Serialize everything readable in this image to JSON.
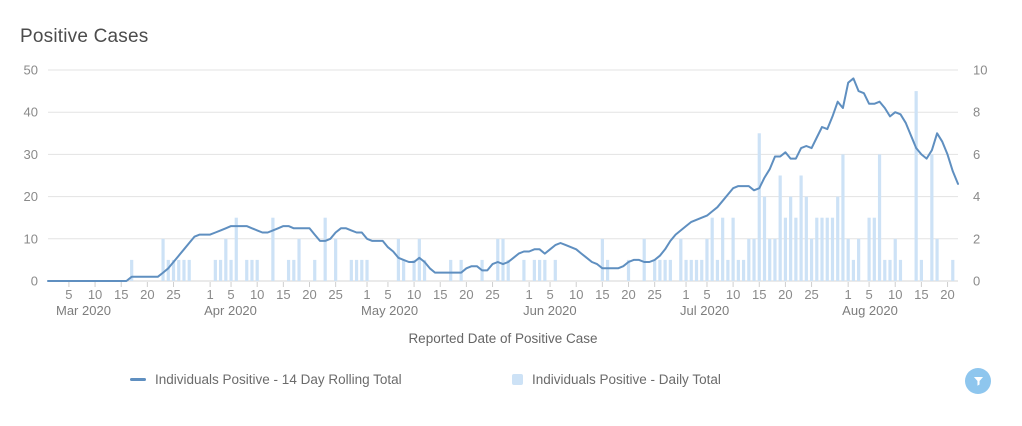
{
  "chart_data": {
    "type": "combo",
    "title": "Positive Cases",
    "xlabel": "Reported Date of Positive Case",
    "grid": true,
    "legend_position": "bottom",
    "left_axis": {
      "range": [
        0,
        50
      ],
      "ticks": [
        0,
        10,
        20,
        30,
        40,
        50
      ]
    },
    "right_axis": {
      "range": [
        0,
        10
      ],
      "ticks": [
        0,
        2,
        4,
        6,
        8,
        10
      ]
    },
    "months": [
      {
        "label": "Mar 2020",
        "days": 31,
        "tick_days": [
          5,
          10,
          15,
          20,
          25
        ]
      },
      {
        "label": "Apr 2020",
        "days": 30,
        "tick_days": [
          1,
          5,
          10,
          15,
          20,
          25
        ]
      },
      {
        "label": "May 2020",
        "days": 31,
        "tick_days": [
          1,
          5,
          10,
          15,
          20,
          25
        ]
      },
      {
        "label": "Jun 2020",
        "days": 30,
        "tick_days": [
          1,
          5,
          10,
          15,
          20,
          25
        ]
      },
      {
        "label": "Jul 2020",
        "days": 31,
        "tick_days": [
          1,
          5,
          10,
          15,
          20,
          25
        ]
      },
      {
        "label": "Aug 2020",
        "days": 22,
        "tick_days": [
          1,
          5,
          10,
          15,
          20
        ]
      }
    ],
    "series": [
      {
        "name": "Individuals Positive - 14 Day Rolling Total",
        "type": "line",
        "axis": "left",
        "color": "#5f8fc0",
        "values": [
          0,
          0,
          0,
          0,
          0,
          0,
          0,
          0,
          0,
          0,
          0,
          0,
          0,
          0,
          0,
          0,
          1,
          1,
          1,
          1,
          1,
          1,
          2,
          3,
          4.5,
          6,
          7.5,
          9,
          10.5,
          11,
          11,
          11,
          11.5,
          12,
          12.5,
          13,
          13,
          13,
          13,
          12.5,
          12,
          11.5,
          11.5,
          12,
          12.5,
          13,
          13,
          12.5,
          12.5,
          12.5,
          12.5,
          11,
          9.5,
          9.5,
          10,
          11.5,
          12.5,
          12.5,
          12,
          11.5,
          11.5,
          10,
          9.5,
          9.5,
          9.5,
          8,
          7,
          5.5,
          5,
          4.5,
          4.5,
          5.5,
          4.5,
          3,
          2,
          2,
          2,
          2,
          2,
          2,
          3,
          3.5,
          3.5,
          2.5,
          2.5,
          4,
          4.5,
          4,
          4.5,
          5.5,
          6.5,
          7,
          7,
          7.5,
          7.5,
          6.5,
          7.5,
          8.5,
          9,
          8.5,
          8,
          7.5,
          6.5,
          5.5,
          4.5,
          4,
          3,
          3,
          3,
          3,
          3.5,
          4.5,
          5,
          5,
          4.5,
          4.5,
          5,
          6,
          7.5,
          9.5,
          11,
          12,
          13,
          14,
          14.5,
          15,
          15.5,
          16.5,
          17.5,
          19,
          20.5,
          22,
          22.5,
          22.5,
          22.5,
          21.5,
          22,
          24.5,
          26.5,
          29.5,
          29.5,
          30.5,
          29,
          29,
          31.5,
          32,
          31.5,
          34,
          36.5,
          36,
          39,
          42.5,
          41,
          47,
          48,
          45,
          44.5,
          42,
          42,
          42.5,
          41,
          39,
          40,
          39.5,
          37.5,
          34.5,
          31.5,
          30,
          29,
          31,
          35,
          33,
          30,
          26,
          23
        ]
      },
      {
        "name": "Individuals Positive - Daily Total",
        "type": "bar",
        "axis": "right",
        "color": "#cde2f6",
        "values": [
          0,
          0,
          0,
          0,
          0,
          0,
          0,
          0,
          0,
          0,
          0,
          0,
          0,
          0,
          0,
          0,
          1,
          0,
          0,
          0,
          0,
          0,
          2,
          1,
          1,
          1,
          1,
          1,
          0,
          0,
          0,
          0,
          1,
          1,
          2,
          1,
          3,
          0,
          1,
          1,
          1,
          0,
          0,
          3,
          0,
          0,
          1,
          1,
          2,
          0,
          0,
          1,
          0,
          3,
          0,
          2,
          0,
          0,
          1,
          1,
          1,
          1,
          0,
          0,
          0,
          0,
          0,
          2,
          1,
          0,
          1,
          2,
          1,
          0,
          0,
          0,
          0,
          1,
          0,
          1,
          0,
          0,
          0,
          1,
          0,
          0,
          2,
          2,
          1,
          0,
          0,
          1,
          0,
          1,
          1,
          1,
          0,
          1,
          0,
          0,
          0,
          0,
          0,
          0,
          0,
          0,
          2,
          1,
          0,
          0,
          0,
          1,
          0,
          0,
          2,
          0,
          1,
          1,
          1,
          1,
          0,
          2,
          1,
          1,
          1,
          1,
          2,
          3,
          1,
          3,
          1,
          3,
          1,
          1,
          2,
          2,
          7,
          4,
          2,
          2,
          5,
          3,
          4,
          3,
          5,
          4,
          2,
          3,
          3,
          3,
          3,
          4,
          6,
          2,
          1,
          2,
          0,
          3,
          3,
          6,
          1,
          1,
          2,
          1,
          0,
          0,
          9,
          1,
          0,
          6,
          2,
          0,
          0,
          1,
          0
        ]
      }
    ]
  },
  "controls": {
    "filter_icon": "funnel-icon"
  },
  "colors": {
    "line_series": "#5f8fc0",
    "bar_series": "#cde2f6",
    "filter_button_bg": "#8ec6ee",
    "grid": "#e3e3e3"
  }
}
